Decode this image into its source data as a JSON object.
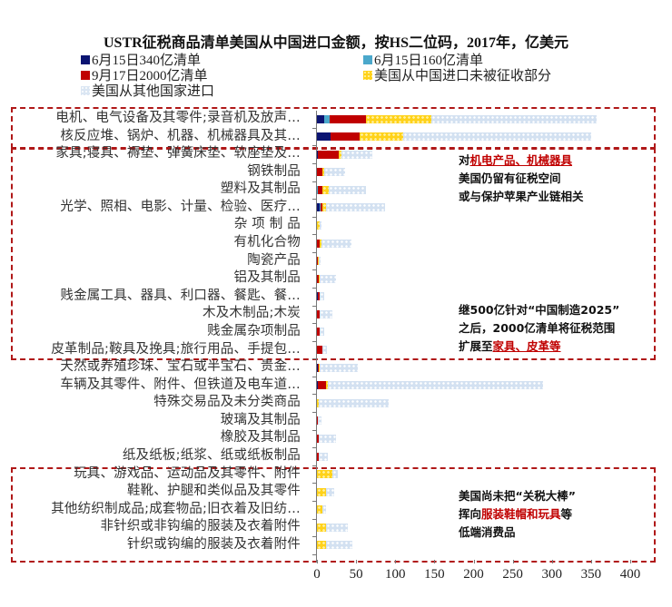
{
  "chart_data": {
    "type": "bar",
    "orientation": "horizontal",
    "stacked": true,
    "title": "USTR征税商品清单美国从中国进口金额，按HS二位码，2017年，亿美元",
    "xlabel": "",
    "ylabel": "",
    "xlim": [
      0,
      400
    ],
    "xticks": [
      "0",
      "50",
      "100",
      "150",
      "200",
      "250",
      "300",
      "350",
      "400"
    ],
    "grid": false,
    "legend_position": "top",
    "legend": [
      {
        "name": "6月15日340亿清单",
        "color": "#0b1472"
      },
      {
        "name": "6月15日160亿清单",
        "color": "#4ba8cb"
      },
      {
        "name": "9月17日2000亿清单",
        "color": "#c00000"
      },
      {
        "name": "美国从中国进口未被征收部分",
        "color": "#ffd21a"
      },
      {
        "name": "美国从其他国家进口",
        "color": "#d3e1f1"
      }
    ],
    "categories": [
      "电机、电气设备及其零件;录音机及放声…",
      "核反应堆、锅炉、机器、机械器具及其…",
      "家具;寝具、褥垫、弹簧床垫、软座垫及…",
      "钢铁制品",
      "塑料及其制品",
      "光学、照相、电影、计量、检验、医疗…",
      "杂 项 制 品",
      "有机化合物",
      "陶瓷产品",
      "铝及其制品",
      "贱金属工具、器具、利口器、餐匙、餐…",
      "木及木制品;木炭",
      "贱金属杂项制品",
      "皮革制品;鞍具及挽具;旅行用品、手提包…",
      "天然或养殖珍珠、宝石或半宝石、贵金…",
      "车辆及其零件、附件、但铁道及电车道…",
      "特殊交易品及未分类商品",
      "玻璃及其制品",
      "橡胶及其制品",
      "纸及纸板;纸浆、纸或纸板制品",
      "玩具、游戏品、运动品及其零件、附件",
      "鞋靴、护腿和类似品及其零件",
      "其他纺织制成品;成套物品;旧衣着及旧纺…",
      "非针织或非钩编的服装及衣着附件",
      "针织或钩编的服装及衣着附件"
    ],
    "series": [
      {
        "name": "6月15日340亿清单",
        "values": [
          9,
          17,
          1,
          0,
          0,
          3,
          0,
          0,
          0,
          0,
          1,
          0,
          0,
          0,
          1,
          1,
          0,
          0,
          0,
          0,
          0,
          0,
          0,
          0,
          0
        ]
      },
      {
        "name": "6月15日160亿清单",
        "values": [
          7,
          0,
          0,
          0,
          1,
          2,
          0,
          0,
          0,
          0,
          0,
          0,
          0,
          0,
          0,
          0,
          0,
          0,
          0,
          0,
          0,
          0,
          0,
          0,
          0
        ]
      },
      {
        "name": "9月17日2000亿清单",
        "values": [
          47,
          37,
          27,
          7,
          6,
          2,
          0,
          3,
          1,
          2,
          3,
          3,
          3,
          7,
          1,
          11,
          0,
          1,
          2,
          2,
          0,
          0,
          0,
          0,
          0
        ]
      },
      {
        "name": "美国从中国进口未被征收部分",
        "values": [
          83,
          56,
          3,
          2,
          8,
          5,
          3,
          3,
          1,
          2,
          0,
          0,
          0,
          0,
          2,
          2,
          2,
          0,
          0,
          0,
          20,
          12,
          7,
          12,
          12
        ]
      },
      {
        "name": "美国从其他国家进口",
        "values": [
          211,
          240,
          40,
          27,
          48,
          75,
          3,
          38,
          3,
          20,
          5,
          17,
          6,
          6,
          48,
          275,
          90,
          5,
          22,
          12,
          7,
          10,
          5,
          28,
          33
        ]
      }
    ]
  },
  "annotations": {
    "box1": {
      "prefix": "对",
      "highlight": "机电产品、机械器具",
      "line2": "美国仍留有征税空间",
      "line3": "或与保护苹果产业链相关"
    },
    "box2": {
      "line1": "继500亿针对“中国制造2025”",
      "line2": "之后，2000亿清单将征税范围",
      "line3_prefix": "扩展至",
      "line3_highlight": "家具、皮革等"
    },
    "box3": {
      "line1": "美国尚未把“关税大棒”",
      "line2_prefix": "挥向",
      "line2_highlight": "服装鞋帽和玩具",
      "line2_suffix": "等",
      "line3": "低端消费品"
    }
  }
}
